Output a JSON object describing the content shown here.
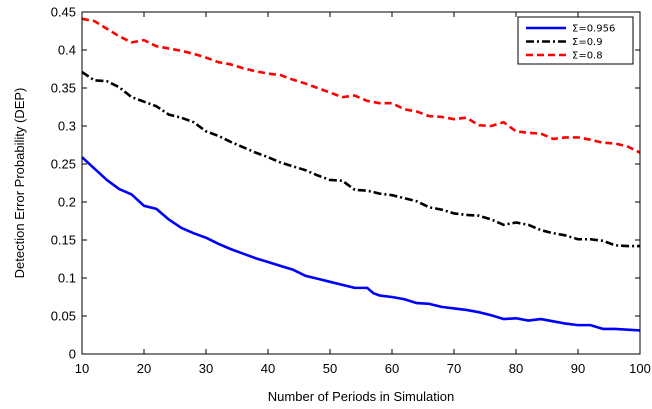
{
  "chart_data": {
    "type": "line",
    "title": "",
    "xlabel": "Number of Periods in Simulation",
    "ylabel": "Detection Error Probability (DEP)",
    "xlim": [
      10,
      100
    ],
    "ylim": [
      0,
      0.45
    ],
    "x_ticks": [
      10,
      20,
      30,
      40,
      50,
      60,
      70,
      80,
      90,
      100
    ],
    "x_tick_labels": [
      "10",
      "20",
      "30",
      "40",
      "50",
      "60",
      "70",
      "80",
      "90",
      "100"
    ],
    "y_ticks": [
      0,
      0.05,
      0.1,
      0.15,
      0.2,
      0.25,
      0.3,
      0.35,
      0.4,
      0.45
    ],
    "y_tick_labels": [
      "0",
      "0.05",
      "0.1",
      "0.15",
      "0.2",
      "0.25",
      "0.3",
      "0.35",
      "0.4",
      "0.45"
    ],
    "grid": false,
    "legend_position": "top-right",
    "series": [
      {
        "name": "Σ=0.956",
        "color": "#0000ff",
        "line_style": "solid",
        "x": [
          10,
          12,
          14,
          16,
          18,
          20,
          22,
          24,
          26,
          28,
          30,
          32,
          34,
          36,
          38,
          40,
          42,
          44,
          46,
          48,
          50,
          52,
          54,
          56,
          57,
          58,
          60,
          62,
          64,
          66,
          68,
          70,
          72,
          74,
          76,
          78,
          80,
          82,
          84,
          86,
          88,
          90,
          92,
          94,
          96,
          98,
          100
        ],
        "y": [
          0.259,
          0.244,
          0.229,
          0.217,
          0.21,
          0.195,
          0.191,
          0.177,
          0.166,
          0.159,
          0.153,
          0.145,
          0.138,
          0.132,
          0.126,
          0.121,
          0.116,
          0.111,
          0.103,
          0.099,
          0.095,
          0.091,
          0.087,
          0.087,
          0.08,
          0.077,
          0.075,
          0.072,
          0.067,
          0.066,
          0.062,
          0.06,
          0.058,
          0.055,
          0.051,
          0.046,
          0.047,
          0.044,
          0.046,
          0.043,
          0.04,
          0.038,
          0.038,
          0.033,
          0.033,
          0.032,
          0.031
        ]
      },
      {
        "name": "Σ=0.9",
        "color": "#000000",
        "line_style": "dash-dot",
        "x": [
          10,
          12,
          14,
          16,
          18,
          20,
          22,
          24,
          26,
          28,
          30,
          32,
          34,
          36,
          38,
          40,
          42,
          44,
          46,
          48,
          50,
          52,
          54,
          56,
          58,
          60,
          62,
          64,
          66,
          68,
          70,
          72,
          74,
          76,
          78,
          80,
          82,
          84,
          86,
          88,
          90,
          92,
          94,
          96,
          98,
          100
        ],
        "y": [
          0.371,
          0.36,
          0.359,
          0.351,
          0.338,
          0.332,
          0.326,
          0.315,
          0.311,
          0.305,
          0.293,
          0.287,
          0.279,
          0.272,
          0.265,
          0.259,
          0.252,
          0.247,
          0.242,
          0.235,
          0.229,
          0.228,
          0.216,
          0.215,
          0.211,
          0.209,
          0.205,
          0.201,
          0.193,
          0.19,
          0.185,
          0.183,
          0.182,
          0.177,
          0.17,
          0.173,
          0.17,
          0.163,
          0.159,
          0.156,
          0.151,
          0.151,
          0.149,
          0.143,
          0.142,
          0.142
        ]
      },
      {
        "name": "Σ=0.8",
        "color": "#ff0000",
        "line_style": "dashed",
        "x": [
          10,
          12,
          14,
          16,
          18,
          20,
          22,
          24,
          26,
          28,
          30,
          32,
          34,
          36,
          38,
          40,
          42,
          44,
          46,
          48,
          50,
          52,
          54,
          56,
          58,
          60,
          62,
          64,
          66,
          68,
          70,
          72,
          74,
          76,
          78,
          80,
          82,
          84,
          86,
          88,
          90,
          92,
          94,
          96,
          98,
          100
        ],
        "y": [
          0.441,
          0.438,
          0.428,
          0.418,
          0.41,
          0.413,
          0.405,
          0.402,
          0.399,
          0.395,
          0.39,
          0.384,
          0.381,
          0.376,
          0.372,
          0.369,
          0.367,
          0.361,
          0.356,
          0.35,
          0.344,
          0.338,
          0.34,
          0.333,
          0.33,
          0.33,
          0.322,
          0.319,
          0.313,
          0.312,
          0.309,
          0.311,
          0.301,
          0.3,
          0.305,
          0.293,
          0.291,
          0.29,
          0.283,
          0.285,
          0.285,
          0.282,
          0.278,
          0.277,
          0.273,
          0.265
        ]
      }
    ]
  }
}
